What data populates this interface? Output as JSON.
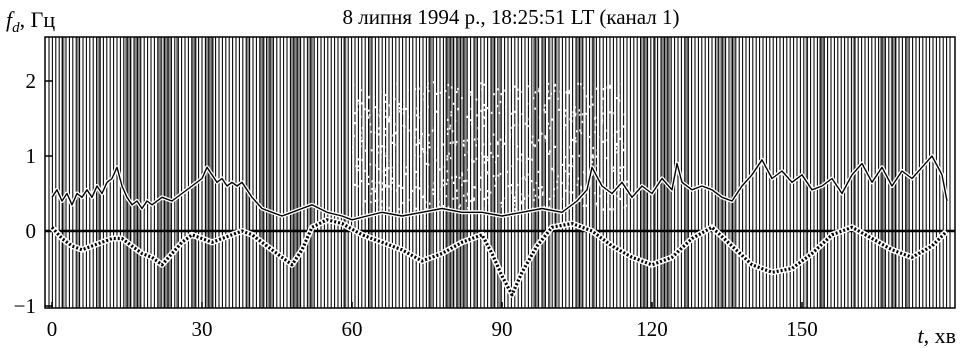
{
  "chart_data": {
    "type": "line",
    "title": "8 липня 1994 р., 18:25:51 LT (канал 1)",
    "ylabel": "f_d, Гц",
    "ylabel_main": "f",
    "ylabel_sub": "d",
    "ylabel_unit": ", Гц",
    "xlabel": "t, хв",
    "xlabel_var": "t",
    "xlabel_unit": ", хв",
    "xlim": [
      0,
      180
    ],
    "ylim": [
      -1,
      2.5
    ],
    "x_ticks": [
      0,
      30,
      60,
      90,
      120,
      150
    ],
    "y_ticks": [
      -1,
      0,
      1,
      2
    ],
    "zero_line": true,
    "background": "dense vertical Doppler spectrogram stripes",
    "series": [
      {
        "style": "solid-thin",
        "x": [
          0,
          1,
          2,
          3,
          4,
          5,
          6,
          7,
          8,
          9,
          10,
          11,
          12,
          13,
          14,
          15,
          16,
          17,
          18,
          19,
          20,
          22,
          24,
          26,
          28,
          30,
          31,
          32,
          33,
          34,
          35,
          36,
          37,
          38,
          39,
          40,
          42,
          44,
          46,
          48,
          50,
          52,
          55,
          58,
          60,
          63,
          66,
          70,
          74,
          78,
          82,
          86,
          90,
          94,
          98,
          102,
          105,
          107,
          108,
          110,
          112,
          114,
          116,
          118,
          120,
          122,
          124,
          125,
          126,
          128,
          130,
          132,
          134,
          136,
          138,
          140,
          142,
          144,
          146,
          148,
          150,
          152,
          154,
          156,
          158,
          160,
          162,
          164,
          166,
          168,
          170,
          172,
          174,
          176,
          178,
          179
        ],
        "y": [
          0.45,
          0.55,
          0.4,
          0.5,
          0.35,
          0.5,
          0.45,
          0.55,
          0.45,
          0.6,
          0.5,
          0.65,
          0.7,
          0.85,
          0.6,
          0.45,
          0.35,
          0.4,
          0.3,
          0.4,
          0.35,
          0.45,
          0.4,
          0.5,
          0.6,
          0.7,
          0.85,
          0.75,
          0.65,
          0.7,
          0.6,
          0.65,
          0.6,
          0.65,
          0.55,
          0.45,
          0.3,
          0.25,
          0.2,
          0.25,
          0.3,
          0.35,
          0.25,
          0.2,
          0.15,
          0.2,
          0.25,
          0.2,
          0.25,
          0.3,
          0.25,
          0.25,
          0.2,
          0.25,
          0.3,
          0.25,
          0.4,
          0.55,
          0.85,
          0.6,
          0.5,
          0.65,
          0.45,
          0.6,
          0.5,
          0.7,
          0.55,
          0.9,
          0.65,
          0.55,
          0.6,
          0.55,
          0.45,
          0.4,
          0.6,
          0.75,
          0.95,
          0.7,
          0.8,
          0.65,
          0.75,
          0.55,
          0.6,
          0.7,
          0.5,
          0.75,
          0.9,
          0.65,
          0.85,
          0.6,
          0.8,
          0.7,
          0.85,
          1.0,
          0.75,
          0.4
        ]
      },
      {
        "style": "dotted-thick",
        "x": [
          0,
          2,
          4,
          6,
          8,
          10,
          12,
          14,
          16,
          18,
          20,
          22,
          24,
          26,
          28,
          30,
          32,
          34,
          36,
          38,
          40,
          42,
          45,
          48,
          50,
          52,
          55,
          58,
          62,
          66,
          70,
          74,
          78,
          82,
          86,
          88,
          90,
          92,
          94,
          97,
          100,
          104,
          108,
          112,
          116,
          120,
          124,
          128,
          132,
          136,
          140,
          144,
          148,
          152,
          156,
          160,
          164,
          168,
          172,
          176,
          179
        ],
        "y": [
          0.05,
          -0.1,
          -0.2,
          -0.25,
          -0.2,
          -0.15,
          -0.1,
          -0.1,
          -0.2,
          -0.3,
          -0.35,
          -0.45,
          -0.3,
          -0.15,
          -0.05,
          -0.1,
          -0.15,
          -0.1,
          -0.05,
          0.0,
          -0.05,
          -0.15,
          -0.3,
          -0.45,
          -0.25,
          0.05,
          0.15,
          0.1,
          -0.05,
          -0.15,
          -0.25,
          -0.4,
          -0.3,
          -0.15,
          -0.05,
          -0.3,
          -0.6,
          -0.85,
          -0.55,
          -0.2,
          0.05,
          0.1,
          0.0,
          -0.2,
          -0.35,
          -0.45,
          -0.35,
          -0.1,
          0.05,
          -0.2,
          -0.45,
          -0.55,
          -0.5,
          -0.3,
          -0.05,
          0.05,
          -0.1,
          -0.25,
          -0.35,
          -0.2,
          0.0
        ]
      }
    ]
  }
}
